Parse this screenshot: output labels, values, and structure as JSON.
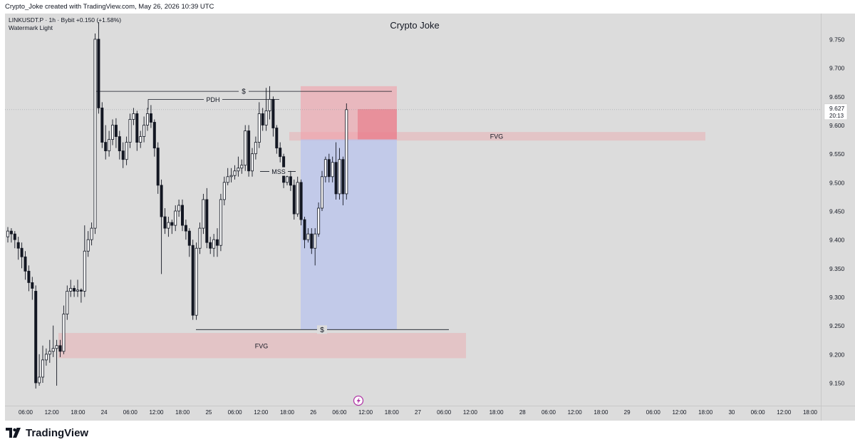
{
  "header": {
    "text": "Crypto_Joke created with TradingView.com, May 26, 2026 10:39 UTC"
  },
  "footer": {
    "brand": "TradingView"
  },
  "chart_data": {
    "type": "candlestick",
    "title": "Crypto Joke",
    "symbol_line": "LINKUSDT.P · 1h · Bybit  +0.150 (+1.58%)",
    "watermark": "Watermark Light",
    "y_ticks": [
      "9.750",
      "9.700",
      "9.650",
      "9.600",
      "9.550",
      "9.500",
      "9.450",
      "9.400",
      "9.350",
      "9.300",
      "9.250",
      "9.200",
      "9.150"
    ],
    "ylim": [
      9.115,
      9.795
    ],
    "x_ticks": [
      "06:00",
      "12:00",
      "18:00",
      "24",
      "06:00",
      "12:00",
      "18:00",
      "25",
      "06:00",
      "12:00",
      "18:00",
      "26",
      "06:00",
      "12:00",
      "18:00",
      "27",
      "06:00",
      "12:00",
      "18:00",
      "28",
      "06:00",
      "12:00",
      "18:00",
      "29",
      "06:00",
      "12:00",
      "18:00",
      "30",
      "06:00",
      "12:00",
      "18:00"
    ],
    "last_price": {
      "value": "9.627",
      "countdown": "20:13"
    },
    "annotations": {
      "dollar_top": "$",
      "dollar_bottom": "$",
      "pdh": "PDH",
      "mss": "MSS",
      "fvg_top": "FVG",
      "fvg_bottom": "FVG"
    },
    "levels": {
      "dollar_top": 9.659,
      "dollar_bottom": 9.243,
      "pdh": 9.645,
      "mss": 9.519,
      "fvg_top": [
        9.573,
        9.588
      ],
      "fvg_bottom": [
        9.193,
        9.237
      ],
      "position_stop": [
        9.628,
        9.668
      ],
      "position_target": [
        9.243,
        9.575
      ],
      "position_entry": 9.575
    },
    "candles": [
      [
        9.405,
        9.415,
        9.395,
        9.422
      ],
      [
        9.415,
        9.41,
        9.395,
        9.42
      ],
      [
        9.41,
        9.4,
        9.385,
        9.415
      ],
      [
        9.395,
        9.385,
        9.365,
        9.405
      ],
      [
        9.385,
        9.37,
        9.35,
        9.395
      ],
      [
        9.37,
        9.345,
        9.33,
        9.38
      ],
      [
        9.345,
        9.325,
        9.31,
        9.355
      ],
      [
        9.325,
        9.315,
        9.295,
        9.335
      ],
      [
        9.31,
        9.15,
        9.14,
        9.32
      ],
      [
        9.15,
        9.16,
        9.145,
        9.2
      ],
      [
        9.16,
        9.19,
        9.15,
        9.215
      ],
      [
        9.19,
        9.2,
        9.18,
        9.21
      ],
      [
        9.2,
        9.205,
        9.185,
        9.225
      ],
      [
        9.205,
        9.21,
        9.195,
        9.25
      ],
      [
        9.21,
        9.215,
        9.145,
        9.225
      ],
      [
        9.215,
        9.205,
        9.195,
        9.225
      ],
      [
        9.205,
        9.27,
        9.2,
        9.285
      ],
      [
        9.27,
        9.31,
        9.26,
        9.32
      ],
      [
        9.31,
        9.315,
        9.3,
        9.33
      ],
      [
        9.315,
        9.31,
        9.3,
        9.32
      ],
      [
        9.31,
        9.312,
        9.3,
        9.33
      ],
      [
        9.312,
        9.31,
        9.29,
        9.315
      ],
      [
        9.31,
        9.38,
        9.3,
        9.425
      ],
      [
        9.38,
        9.4,
        9.37,
        9.415
      ],
      [
        9.4,
        9.42,
        9.39,
        9.43
      ],
      [
        9.42,
        9.75,
        9.41,
        9.76
      ],
      [
        9.75,
        9.63,
        9.62,
        9.78
      ],
      [
        9.63,
        9.57,
        9.56,
        9.64
      ],
      [
        9.57,
        9.555,
        9.54,
        9.6
      ],
      [
        9.555,
        9.575,
        9.545,
        9.59
      ],
      [
        9.575,
        9.6,
        9.565,
        9.61
      ],
      [
        9.6,
        9.58,
        9.56,
        9.612
      ],
      [
        9.58,
        9.555,
        9.54,
        9.59
      ],
      [
        9.555,
        9.54,
        9.525,
        9.57
      ],
      [
        9.54,
        9.57,
        9.53,
        9.58
      ],
      [
        9.57,
        9.61,
        9.56,
        9.62
      ],
      [
        9.61,
        9.62,
        9.6,
        9.63
      ],
      [
        9.62,
        9.57,
        9.555,
        9.625
      ],
      [
        9.57,
        9.58,
        9.56,
        9.59
      ],
      [
        9.58,
        9.6,
        9.57,
        9.615
      ],
      [
        9.6,
        9.62,
        9.59,
        9.63
      ],
      [
        9.62,
        9.605,
        9.595,
        9.635
      ],
      [
        9.605,
        9.56,
        9.545,
        9.61
      ],
      [
        9.56,
        9.495,
        9.48,
        9.57
      ],
      [
        9.495,
        9.44,
        9.34,
        9.505
      ],
      [
        9.44,
        9.42,
        9.41,
        9.455
      ],
      [
        9.42,
        9.43,
        9.405,
        9.44
      ],
      [
        9.43,
        9.425,
        9.41,
        9.435
      ],
      [
        9.425,
        9.45,
        9.415,
        9.46
      ],
      [
        9.45,
        9.46,
        9.44,
        9.47
      ],
      [
        9.46,
        9.425,
        9.415,
        9.47
      ],
      [
        9.425,
        9.415,
        9.4,
        9.435
      ],
      [
        9.415,
        9.39,
        9.37,
        9.42
      ],
      [
        9.39,
        9.268,
        9.26,
        9.4
      ],
      [
        9.268,
        9.385,
        9.26,
        9.395
      ],
      [
        9.385,
        9.42,
        9.375,
        9.43
      ],
      [
        9.42,
        9.47,
        9.41,
        9.48
      ],
      [
        9.47,
        9.395,
        9.385,
        9.49
      ],
      [
        9.395,
        9.385,
        9.375,
        9.405
      ],
      [
        9.385,
        9.4,
        9.37,
        9.41
      ],
      [
        9.4,
        9.39,
        9.37,
        9.42
      ],
      [
        9.39,
        9.47,
        9.38,
        9.48
      ],
      [
        9.47,
        9.5,
        9.46,
        9.51
      ],
      [
        9.5,
        9.51,
        9.495,
        9.525
      ],
      [
        9.51,
        9.512,
        9.5,
        9.525
      ],
      [
        9.512,
        9.52,
        9.505,
        9.53
      ],
      [
        9.52,
        9.525,
        9.51,
        9.545
      ],
      [
        9.525,
        9.53,
        9.515,
        9.54
      ],
      [
        9.53,
        9.59,
        9.52,
        9.6
      ],
      [
        9.59,
        9.52,
        9.51,
        9.6
      ],
      [
        9.52,
        9.55,
        9.51,
        9.56
      ],
      [
        9.55,
        9.57,
        9.54,
        9.58
      ],
      [
        9.57,
        9.62,
        9.56,
        9.64
      ],
      [
        9.62,
        9.6,
        9.59,
        9.63
      ],
      [
        9.6,
        9.625,
        9.59,
        9.665
      ],
      [
        9.625,
        9.645,
        9.61,
        9.668
      ],
      [
        9.645,
        9.595,
        9.58,
        9.65
      ],
      [
        9.595,
        9.56,
        9.55,
        9.6
      ],
      [
        9.56,
        9.545,
        9.535,
        9.57
      ],
      [
        9.545,
        9.5,
        9.49,
        9.55
      ],
      [
        9.5,
        9.51,
        9.495,
        9.52
      ],
      [
        9.51,
        9.495,
        9.485,
        9.52
      ],
      [
        9.495,
        9.445,
        9.435,
        9.505
      ],
      [
        9.445,
        9.5,
        9.44,
        9.51
      ],
      [
        9.5,
        9.435,
        9.425,
        9.505
      ],
      [
        9.435,
        9.4,
        9.385,
        9.44
      ],
      [
        9.4,
        9.41,
        9.395,
        9.42
      ],
      [
        9.41,
        9.385,
        9.375,
        9.42
      ],
      [
        9.385,
        9.41,
        9.355,
        9.42
      ],
      [
        9.41,
        9.455,
        9.405,
        9.465
      ],
      [
        9.455,
        9.51,
        9.45,
        9.52
      ],
      [
        9.51,
        9.54,
        9.5,
        9.545
      ],
      [
        9.54,
        9.51,
        9.5,
        9.55
      ],
      [
        9.51,
        9.535,
        9.5,
        9.545
      ],
      [
        9.535,
        9.48,
        9.47,
        9.57
      ],
      [
        9.48,
        9.54,
        9.47,
        9.56
      ],
      [
        9.54,
        9.48,
        9.46,
        9.545
      ],
      [
        9.48,
        9.627,
        9.47,
        9.638
      ]
    ]
  }
}
